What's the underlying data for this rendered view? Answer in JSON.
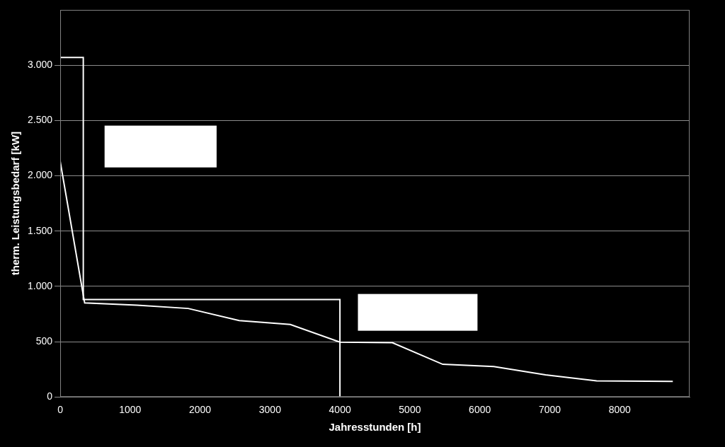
{
  "chart_data": {
    "type": "line",
    "x_label": "Jahresstunden [h]",
    "y_label": "therm. Leistungsbedarf [kW]",
    "xlim": [
      0,
      9000
    ],
    "xticks": [
      0,
      1000,
      2000,
      3000,
      4000,
      5000,
      6000,
      7000,
      8000
    ],
    "ylim": [
      0,
      3500
    ],
    "yticks": [
      0,
      500,
      {
        "value": 1000,
        "label": "1.000"
      },
      {
        "value": 1500,
        "label": "1.500"
      },
      {
        "value": 2000,
        "label": "2.000"
      },
      {
        "value": 2500,
        "label": "2.500"
      },
      {
        "value": 3000,
        "label": "3.000"
      }
    ],
    "grid": true,
    "series": [
      {
        "color": "#ffffff",
        "x": [
          0,
          330,
          350,
          1100,
          1830,
          2560,
          3290,
          4000,
          4750,
          5470,
          6200,
          6940,
          7670,
          8760
        ],
        "values": [
          2130,
          920,
          850,
          830,
          800,
          690,
          655,
          495,
          490,
          295,
          275,
          200,
          145,
          140
        ]
      },
      {
        "color": "#ffffff",
        "x": [
          0,
          330,
          330,
          4000,
          4000
        ],
        "values": [
          3070,
          3070,
          880,
          880,
          0
        ]
      }
    ]
  }
}
